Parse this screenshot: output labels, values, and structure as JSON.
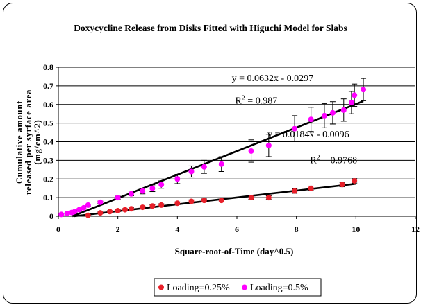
{
  "chart_data": {
    "type": "scatter",
    "title": "Doxycycline Release from Disks Fitted with Higuchi Model for Slabs",
    "xlabel": "Square-root-of-Time (day^0.5)",
    "ylabel_lines": [
      "Cumulative amount",
      "released per syrface area",
      "(mg/cm^2)"
    ],
    "xlim": [
      0,
      12
    ],
    "ylim": [
      0,
      0.8
    ],
    "x_ticks": [
      "0",
      "2",
      "4",
      "6",
      "8",
      "10",
      "12"
    ],
    "y_ticks": [
      "0",
      "0.1",
      "0.2",
      "0.3",
      "0.4",
      "0.5",
      "0.6",
      "0.7",
      "0.8"
    ],
    "grid": "horizontal",
    "legend_position": "bottom",
    "series": [
      {
        "name": "Loading=0.25%",
        "color": "#e8202a",
        "points": [
          {
            "x": 1.0,
            "y": 0.005,
            "err": 0.004
          },
          {
            "x": 1.41,
            "y": 0.018,
            "err": 0.005
          },
          {
            "x": 1.73,
            "y": 0.025,
            "err": 0.005
          },
          {
            "x": 2.0,
            "y": 0.03,
            "err": 0.006
          },
          {
            "x": 2.24,
            "y": 0.035,
            "err": 0.006
          },
          {
            "x": 2.45,
            "y": 0.04,
            "err": 0.006
          },
          {
            "x": 2.83,
            "y": 0.048,
            "err": 0.006
          },
          {
            "x": 3.16,
            "y": 0.055,
            "err": 0.007
          },
          {
            "x": 3.46,
            "y": 0.06,
            "err": 0.007
          },
          {
            "x": 4.0,
            "y": 0.07,
            "err": 0.007
          },
          {
            "x": 4.47,
            "y": 0.08,
            "err": 0.008
          },
          {
            "x": 4.9,
            "y": 0.085,
            "err": 0.008
          },
          {
            "x": 5.48,
            "y": 0.085,
            "err": 0.008
          },
          {
            "x": 6.48,
            "y": 0.1,
            "err": 0.009
          },
          {
            "x": 7.07,
            "y": 0.1,
            "err": 0.01
          },
          {
            "x": 7.94,
            "y": 0.135,
            "err": 0.012
          },
          {
            "x": 8.49,
            "y": 0.15,
            "err": 0.012
          },
          {
            "x": 9.54,
            "y": 0.17,
            "err": 0.012
          },
          {
            "x": 9.95,
            "y": 0.19,
            "err": 0.012
          }
        ]
      },
      {
        "name": "Loading=0.5%",
        "color": "#ff00ff",
        "points": [
          {
            "x": 0.1,
            "y": 0.01,
            "err": 0.004
          },
          {
            "x": 0.3,
            "y": 0.015,
            "err": 0.004
          },
          {
            "x": 0.45,
            "y": 0.02,
            "err": 0.004
          },
          {
            "x": 0.55,
            "y": 0.025,
            "err": 0.004
          },
          {
            "x": 0.7,
            "y": 0.035,
            "err": 0.005
          },
          {
            "x": 0.85,
            "y": 0.045,
            "err": 0.005
          },
          {
            "x": 1.0,
            "y": 0.06,
            "err": 0.005
          },
          {
            "x": 1.41,
            "y": 0.075,
            "err": 0.006
          },
          {
            "x": 2.0,
            "y": 0.1,
            "err": 0.008
          },
          {
            "x": 2.45,
            "y": 0.12,
            "err": 0.01
          },
          {
            "x": 2.83,
            "y": 0.135,
            "err": 0.015
          },
          {
            "x": 3.16,
            "y": 0.15,
            "err": 0.018
          },
          {
            "x": 3.46,
            "y": 0.17,
            "err": 0.02
          },
          {
            "x": 4.0,
            "y": 0.2,
            "err": 0.025
          },
          {
            "x": 4.47,
            "y": 0.24,
            "err": 0.03
          },
          {
            "x": 4.9,
            "y": 0.265,
            "err": 0.035
          },
          {
            "x": 5.48,
            "y": 0.28,
            "err": 0.04
          },
          {
            "x": 6.48,
            "y": 0.35,
            "err": 0.06
          },
          {
            "x": 7.07,
            "y": 0.38,
            "err": 0.06
          },
          {
            "x": 7.94,
            "y": 0.47,
            "err": 0.07
          },
          {
            "x": 8.49,
            "y": 0.52,
            "err": 0.065
          },
          {
            "x": 8.94,
            "y": 0.54,
            "err": 0.065
          },
          {
            "x": 9.22,
            "y": 0.555,
            "err": 0.06
          },
          {
            "x": 9.59,
            "y": 0.57,
            "err": 0.06
          },
          {
            "x": 9.85,
            "y": 0.61,
            "err": 0.06
          },
          {
            "x": 9.95,
            "y": 0.65,
            "err": 0.06
          },
          {
            "x": 10.25,
            "y": 0.68,
            "err": 0.06
          }
        ]
      }
    ],
    "trendlines": [
      {
        "series": "Loading=0.5%",
        "slope": 0.0632,
        "intercept": -0.0297,
        "x_range": [
          0.47,
          10.25
        ]
      },
      {
        "series": "Loading=0.25%",
        "slope": 0.0184,
        "intercept": -0.0096,
        "x_range": [
          0.52,
          10.0
        ]
      }
    ],
    "annotations": [
      {
        "text": "y = 0.0632x - 0.0297",
        "x": 7.2,
        "y": 0.725
      },
      {
        "text": "R",
        "sup": "2",
        "after": " = 0.987",
        "x": 6.65,
        "y": 0.605
      },
      {
        "text": "y = 0.0184x - 0.0096",
        "x": 8.4,
        "y": 0.425
      },
      {
        "text": "R",
        "sup": "2",
        "after": " = 0.9768",
        "x": 9.25,
        "y": 0.285
      }
    ]
  }
}
